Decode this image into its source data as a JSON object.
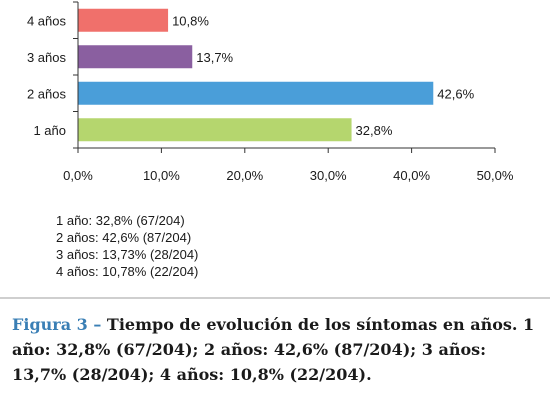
{
  "chart_data": {
    "type": "bar",
    "orientation": "horizontal",
    "categories": [
      "1 año",
      "2 años",
      "3 años",
      "4 años"
    ],
    "series": [
      {
        "values": [
          32.8,
          42.6,
          13.7,
          10.8
        ],
        "labels": [
          "32,8%",
          "42,6%",
          "13,7%",
          "10,8%"
        ],
        "colors": [
          "#b5d66e",
          "#4a9ed9",
          "#8a5fa0",
          "#f0706b"
        ]
      }
    ],
    "xlim": [
      0,
      50
    ],
    "x_ticks": [
      0,
      10,
      20,
      30,
      40,
      50
    ],
    "x_tick_labels": [
      "0,0%",
      "10,0%",
      "20,0%",
      "30,0%",
      "40,0%",
      "50,0%"
    ],
    "grid": false,
    "legend": "none"
  },
  "notes": [
    "1 año: 32,8% (67/204)",
    "2 años: 42,6% (87/204)",
    "3 años: 13,73% (28/204)",
    "4 años: 10,78% (22/204)"
  ],
  "caption": {
    "label": "Figura 3 – ",
    "text": "Tiempo de evolución de los síntomas en años. 1 año: 32,8% (67/204); 2 años: 42,6% (87/204); 3 años: 13,7% (28/204); 4 años: 10,8% (22/204)."
  }
}
